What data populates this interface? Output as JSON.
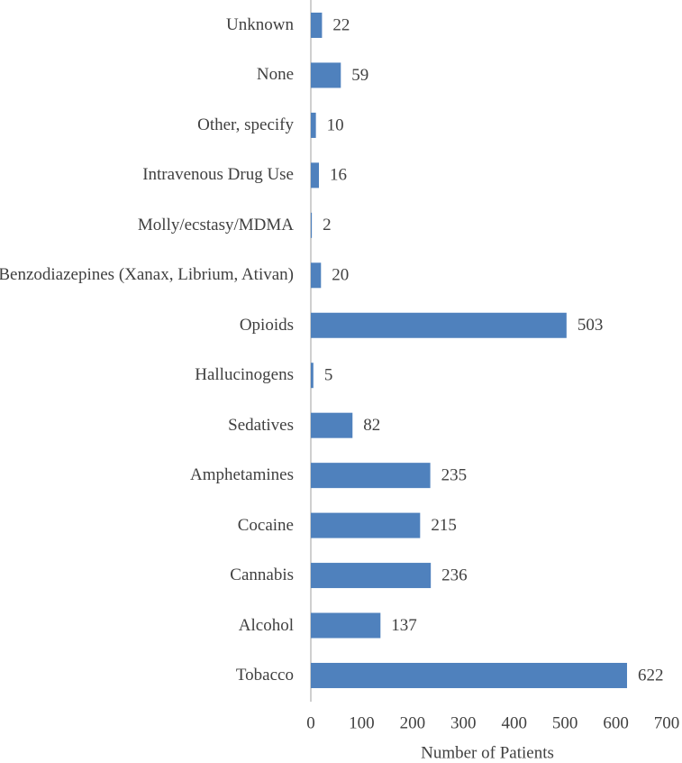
{
  "chart_data": {
    "type": "bar",
    "orientation": "horizontal",
    "x_label": "Number of Patients",
    "categories": [
      "Unknown",
      "None",
      "Other, specify",
      "Intravenous Drug Use",
      "Molly/ecstasy/MDMA",
      "Benzodiazepines (Xanax, Librium, Ativan)",
      "Opioids",
      "Hallucinogens",
      "Sedatives",
      "Amphetamines",
      "Cocaine",
      "Cannabis",
      "Alcohol",
      "Tobacco"
    ],
    "values": [
      22,
      59,
      10,
      16,
      2,
      20,
      503,
      5,
      82,
      235,
      215,
      236,
      137,
      622
    ],
    "color": "#4f81bd",
    "xlim": [
      0,
      700
    ],
    "xticks": [
      0,
      100,
      200,
      300,
      400,
      500,
      600,
      700
    ],
    "grid": false
  }
}
